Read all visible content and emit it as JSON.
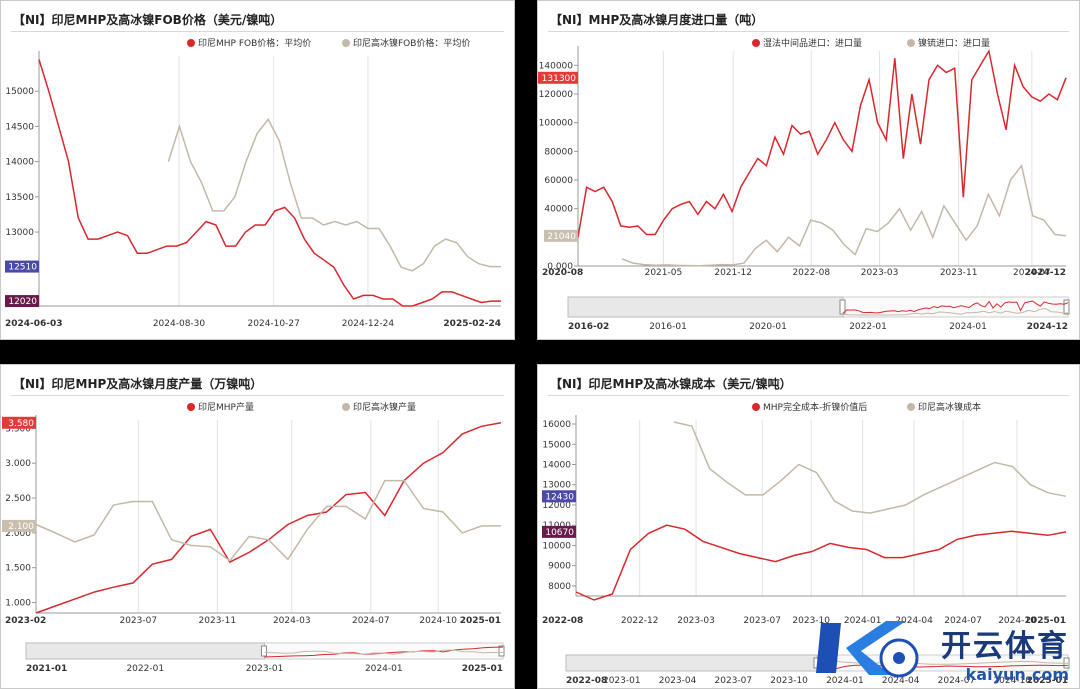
{
  "panels": [
    {
      "title": "【NI】印尼MHP及高冰镍FOB价格（美元/镍吨）",
      "chart_data": {
        "type": "line",
        "legend": [
          "印尼MHP FOB价格：平均价",
          "印尼高冰镍FOB价格：平均价"
        ],
        "yticks": [
          12000,
          12500,
          13000,
          13500,
          14000,
          14500,
          15000
        ],
        "ylim": [
          11950,
          15500
        ],
        "xticks": [
          "2024-06-03",
          "2024-08-30",
          "2024-10-27",
          "2024-12-24",
          "2025-02-24"
        ],
        "xtick_pos": [
          0,
          0.303,
          0.508,
          0.712,
          1.0
        ],
        "end_labels": [
          "12020",
          "12510"
        ],
        "series": [
          {
            "name": "印尼MHP FOB价格：平均价",
            "color": "#d8282e",
            "values": [
              15450,
              15000,
              14500,
              14000,
              13200,
              12900,
              12900,
              12950,
              13000,
              12950,
              12700,
              12700,
              12750,
              12800,
              12800,
              12850,
              13000,
              13150,
              13100,
              12800,
              12800,
              13000,
              13100,
              13100,
              13300,
              13350,
              13200,
              12900,
              12700,
              12600,
              12500,
              12250,
              12050,
              12100,
              12100,
              12050,
              12050,
              11950,
              11950,
              12000,
              12050,
              12150,
              12150,
              12100,
              12050,
              12000,
              12020,
              12020
            ]
          },
          {
            "name": "印尼高冰镍FOB价格：平均价",
            "color": "#c4b8a8",
            "start": 0.28,
            "values": [
              14000,
              14500,
              14000,
              13700,
              13300,
              13300,
              13500,
              14000,
              14400,
              14600,
              14300,
              13700,
              13200,
              13200,
              13100,
              13150,
              13100,
              13150,
              13050,
              13050,
              12800,
              12500,
              12450,
              12550,
              12800,
              12900,
              12850,
              12650,
              12550,
              12510,
              12510
            ]
          }
        ]
      }
    },
    {
      "title": "【NI】MHP及高冰镍月度进口量（吨）",
      "chart_data": {
        "type": "line",
        "legend": [
          "湿法中间品进口：进口量",
          "镍锍进口：进口量"
        ],
        "yticks": [
          0,
          20000,
          40000,
          60000,
          80000,
          100000,
          120000,
          140000
        ],
        "ylim": [
          0,
          150000
        ],
        "xticks": [
          "2020-08",
          "2021-05",
          "2021-12",
          "2022-08",
          "2023-03",
          "2023-11",
          "2024-07",
          "2024-12"
        ],
        "xtick_pos": [
          0,
          0.175,
          0.318,
          0.478,
          0.618,
          0.78,
          0.93,
          1.0
        ],
        "end_labels": [
          "131300",
          "21040"
        ],
        "range_labels": [
          "2016-02",
          "2016-01",
          "2020-01",
          "2022-01",
          "2024-01",
          "2024-12"
        ],
        "series": [
          {
            "name": "湿法中间品进口：进口量",
            "color": "#d8282e",
            "values": [
              20000,
              55000,
              52000,
              55000,
              45000,
              28000,
              27000,
              28000,
              22000,
              22000,
              32000,
              40000,
              43000,
              45000,
              36000,
              45000,
              40000,
              50000,
              38000,
              55000,
              65000,
              75000,
              70000,
              90000,
              78000,
              98000,
              92000,
              94000,
              78000,
              88000,
              100000,
              88000,
              80000,
              112000,
              130000,
              100000,
              88000,
              145000,
              75000,
              120000,
              85000,
              130000,
              140000,
              135000,
              138000,
              48000,
              130000,
              140000,
              150000,
              120000,
              95000,
              140000,
              125000,
              118000,
              115000,
              120000,
              116000,
              131300
            ]
          },
          {
            "name": "镍锍进口：进口量",
            "color": "#c4b8a8",
            "start": 0.09,
            "values": [
              5000,
              2000,
              1000,
              500,
              800,
              400,
              300,
              200,
              500,
              1000,
              800,
              2000,
              12000,
              18000,
              10000,
              20000,
              14000,
              32000,
              30000,
              25000,
              15000,
              8000,
              26000,
              24000,
              30000,
              40000,
              25000,
              38000,
              20000,
              42000,
              30000,
              18000,
              28000,
              50000,
              35000,
              60000,
              70000,
              35000,
              32000,
              22000,
              21040
            ]
          }
        ]
      }
    },
    {
      "title": "【NI】印尼MHP及高冰镍月度产量（万镍吨）",
      "chart_data": {
        "type": "line",
        "legend": [
          "印尼MHP产量",
          "印尼高冰镍产量"
        ],
        "yticks": [
          1.0,
          1.5,
          2.0,
          2.5,
          3.0,
          3.5
        ],
        "ylim": [
          0.85,
          3.62
        ],
        "xticks": [
          "2023-02",
          "2023-07",
          "2023-11",
          "2024-03",
          "2024-07",
          "2024-10",
          "2025-01"
        ],
        "xtick_pos": [
          0,
          0.22,
          0.39,
          0.55,
          0.72,
          0.865,
          1.0
        ],
        "end_labels": [
          "3.580",
          "2.100"
        ],
        "range_labels": [
          "2021-01",
          "2022-01",
          "2023-01",
          "2024-01",
          "2025-01"
        ],
        "series": [
          {
            "name": "印尼MHP产量",
            "color": "#d8282e",
            "values": [
              0.85,
              0.95,
              1.05,
              1.15,
              1.22,
              1.28,
              1.55,
              1.62,
              1.95,
              2.05,
              1.58,
              1.72,
              1.9,
              2.12,
              2.25,
              2.3,
              2.55,
              2.58,
              2.25,
              2.75,
              3.0,
              3.15,
              3.42,
              3.53,
              3.58
            ]
          },
          {
            "name": "印尼高冰镍产量",
            "color": "#c4b8a8",
            "values": [
              2.12,
              2.0,
              1.87,
              1.97,
              2.4,
              2.45,
              2.45,
              1.9,
              1.82,
              1.8,
              1.6,
              1.95,
              1.9,
              1.62,
              2.05,
              2.38,
              2.38,
              2.2,
              2.75,
              2.75,
              2.35,
              2.3,
              2.0,
              2.1,
              2.1
            ]
          }
        ]
      }
    },
    {
      "title": "【NI】印尼MHP及高冰镍成本（美元/镍吨）",
      "chart_data": {
        "type": "line",
        "legend": [
          "MHP完全成本-折镍价值后",
          "印尼高冰镍成本"
        ],
        "yticks": [
          8000,
          9000,
          10000,
          11000,
          12000,
          13000,
          14000,
          15000,
          16000
        ],
        "ylim": [
          7500,
          16200
        ],
        "xticks": [
          "2022-08",
          "2022-12",
          "2023-03",
          "2023-07",
          "2023-10",
          "2024-01",
          "2024-04",
          "2024-07",
          "2024-10",
          "2025-01"
        ],
        "xtick_pos": [
          0,
          0.13,
          0.245,
          0.38,
          0.48,
          0.585,
          0.69,
          0.79,
          0.9,
          1.0
        ],
        "end_labels": [
          "12430",
          "10670"
        ],
        "range_labels": [
          "2022-08",
          "2023-01",
          "2023-04",
          "2023-07",
          "2023-10",
          "2024-01",
          "2024-04",
          "2024-07",
          "2024-10",
          "2025-01"
        ],
        "series": [
          {
            "name": "MHP完全成本-折镍价值后",
            "color": "#d8282e",
            "values": [
              7700,
              7300,
              7600,
              9800,
              10600,
              11000,
              10800,
              10200,
              9900,
              9600,
              9400,
              9200,
              9500,
              9700,
              10100,
              9900,
              9800,
              9400,
              9400,
              9600,
              9800,
              10300,
              10500,
              10600,
              10700,
              10600,
              10500,
              10670
            ]
          },
          {
            "name": "印尼高冰镍成本",
            "color": "#c4b8a8",
            "start": 0.2,
            "values": [
              16100,
              15900,
              13800,
              13100,
              12500,
              12500,
              13200,
              14000,
              13600,
              12200,
              11700,
              11600,
              11800,
              12000,
              12500,
              12900,
              13300,
              13700,
              14100,
              13900,
              13000,
              12600,
              12430
            ]
          }
        ]
      }
    }
  ],
  "watermark": {
    "big": "开云体育",
    "small": "kaiyun.com"
  }
}
